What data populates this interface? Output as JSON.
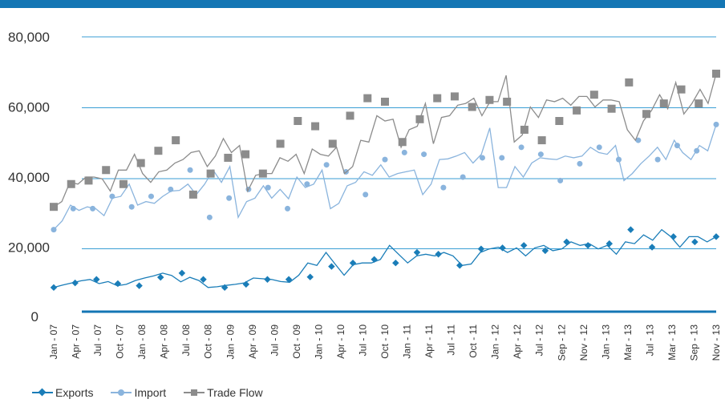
{
  "chart_data": {
    "type": "line",
    "y_ticks": [
      "80,000",
      "60,000",
      "40,000",
      "20,000",
      "0"
    ],
    "y_tick_values": [
      80000,
      60000,
      40000,
      20000,
      0
    ],
    "ylim": [
      0,
      80000
    ],
    "grid": true,
    "legend_position": "bottom-left",
    "x_tick_labels": [
      "Jan - 07",
      "Apr - 07",
      "Jul - 07",
      "Oct - 07",
      "Jan - 08",
      "Apr - 08",
      "Jul - 08",
      "Oct - 08",
      "Jan - 09",
      "Apr - 09",
      "Jul - 09",
      "Oct - 09",
      "Jan - 10",
      "Apr - 10",
      "Jul - 10",
      "Oct - 10",
      "Jan - 11",
      "Apr - 11",
      "Jul - 11",
      "Oct - 11",
      "Jan - 12",
      "Apr - 12",
      "Jul - 12",
      "Sep - 12",
      "Nov - 12",
      "Jan - 13",
      "Mar - 13",
      "Jul - 13",
      "Mar - 13",
      "Sep - 13",
      "Nov - 13"
    ],
    "series": [
      {
        "name": "Exports",
        "color": "#1a7db8",
        "marker": "diamond",
        "values": [
          8500,
          9200,
          9800,
          10400,
          10800,
          9600,
          10200,
          9000,
          9400,
          10500,
          11200,
          11800,
          12600,
          11900,
          10100,
          11400,
          10500,
          8500,
          8700,
          9100,
          9400,
          9800,
          11200,
          11000,
          10800,
          10200,
          10000,
          12000,
          15500,
          14800,
          18500,
          15200,
          12000,
          15000,
          15500,
          15500,
          16500,
          20500,
          18000,
          15500,
          17500,
          18000,
          17500,
          18500,
          17500,
          14800,
          15200,
          18500,
          19500,
          20000,
          18500,
          19800,
          17500,
          19800,
          20500,
          19000,
          19500,
          21500,
          20500,
          21000,
          19500,
          20500,
          18000,
          21500,
          21000,
          23500,
          22000,
          25000,
          23000,
          20000,
          23000,
          23000,
          21500,
          23000
        ],
        "marker_values": [
          8500,
          9800,
          10800,
          9600,
          9000,
          11400,
          12600,
          10800,
          8500,
          9400,
          10800,
          10800,
          11500,
          14500,
          15500,
          16500,
          15500,
          18500,
          18000,
          14800,
          19500,
          19800,
          20500,
          19000,
          21500,
          20500,
          21000,
          25000,
          20000,
          23000,
          21500,
          23000
        ]
      },
      {
        "name": "Import",
        "color": "#8ab4dd",
        "marker": "circle",
        "values": [
          25000,
          27500,
          32000,
          30500,
          31500,
          31000,
          29000,
          34000,
          34500,
          38000,
          32000,
          33000,
          32500,
          34500,
          36000,
          36200,
          38000,
          35000,
          38000,
          42000,
          38500,
          43000,
          28500,
          33000,
          34000,
          37500,
          34000,
          36500,
          33800,
          40000,
          37000,
          38000,
          42000,
          31000,
          32500,
          37500,
          38500,
          41500,
          40500,
          43500,
          40000,
          41000,
          41500,
          42000,
          35000,
          38000,
          45000,
          45200,
          46000,
          47000,
          44000,
          46500,
          54000,
          37000,
          37000,
          43000,
          40000,
          44000,
          45500,
          45200,
          45000,
          46000,
          45500,
          46000,
          48500,
          47000,
          46500,
          49000,
          39000,
          41000,
          43800,
          46000,
          48500,
          45000,
          50500,
          47000,
          45000,
          49000,
          47500,
          55000
        ],
        "marker_values": [
          25000,
          31000,
          31000,
          34500,
          31500,
          34500,
          36500,
          42000,
          28500,
          34000,
          36500,
          37000,
          31000,
          38000,
          43500,
          41500,
          35000,
          45000,
          47000,
          46500,
          37000,
          40000,
          45500,
          45500,
          48500,
          46500,
          39000,
          43800,
          48500,
          45000,
          50500,
          45000,
          49000,
          47500,
          55000
        ]
      },
      {
        "name": "Trade Flow",
        "color": "#8c8c8c",
        "marker": "square",
        "values": [
          31500,
          33000,
          38500,
          38000,
          40000,
          40000,
          39500,
          36000,
          42000,
          42000,
          46500,
          41000,
          38500,
          41500,
          42000,
          44000,
          45000,
          47000,
          47500,
          43000,
          46000,
          51000,
          47000,
          49000,
          36000,
          40500,
          41000,
          41000,
          45500,
          44500,
          46500,
          41000,
          48000,
          46500,
          46000,
          48500,
          41000,
          43000,
          50500,
          50000,
          57500,
          56000,
          56500,
          48500,
          53500,
          54500,
          61000,
          49500,
          57000,
          57500,
          60500,
          61000,
          62500,
          57500,
          61500,
          61500,
          69000,
          50000,
          52000,
          60000,
          57000,
          62000,
          61500,
          62500,
          60500,
          63000,
          63000,
          60000,
          62000,
          62000,
          61500,
          53500,
          50500,
          56000,
          59000,
          63500,
          59500,
          67000,
          58000,
          61000,
          65000,
          61000,
          69500
        ],
        "marker_values": [
          31500,
          38000,
          39000,
          42000,
          38000,
          44000,
          47500,
          50500,
          35000,
          41000,
          45500,
          46500,
          41000,
          49500,
          56000,
          54500,
          49500,
          57500,
          62500,
          61500,
          50000,
          56500,
          62500,
          63000,
          60000,
          62000,
          61500,
          53500,
          50500,
          56000,
          59000,
          63500,
          59500,
          67000,
          58000,
          61000,
          65000,
          61000,
          69500
        ]
      }
    ]
  }
}
